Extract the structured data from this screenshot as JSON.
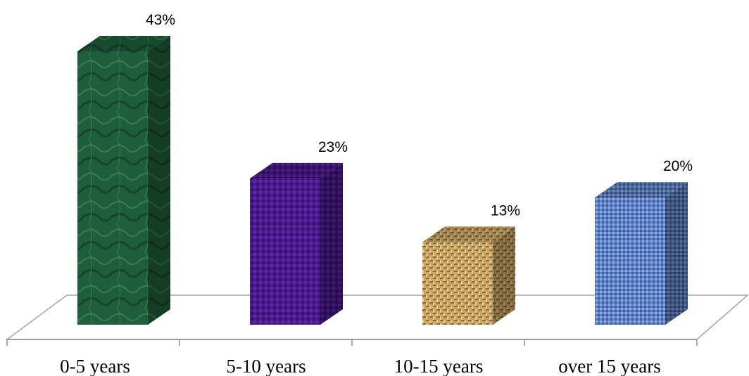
{
  "chart_data": {
    "type": "bar",
    "categories": [
      "0-5 years",
      "5-10 years",
      "10-15 years",
      "over 15 years"
    ],
    "values": [
      43,
      23,
      13,
      20
    ],
    "value_labels": [
      "43%",
      "23%",
      "13%",
      "20%"
    ],
    "ylim": [
      0,
      43
    ],
    "grid": false,
    "legend": "none",
    "title": "",
    "xlabel": "",
    "ylabel": "",
    "colors": [
      "#1f5e3a",
      "#4b1a8c",
      "#c9a463",
      "#5d82c8"
    ]
  }
}
